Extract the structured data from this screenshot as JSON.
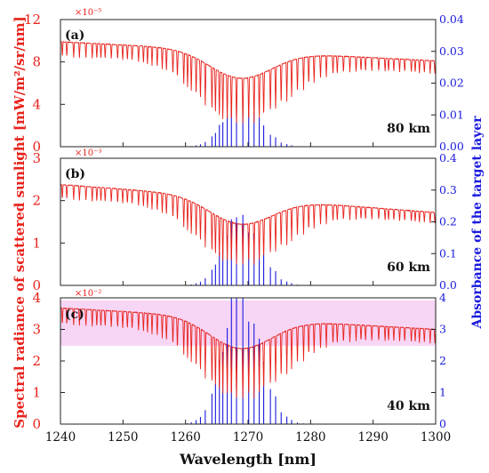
{
  "chart_data": {
    "type": "line",
    "xlabel": "Wavelength [nm]",
    "ylabel_left": "Spectral radiance of scattered sunlight [mW/m²/sr/nm]",
    "ylabel_right": "Absorbance of the target layer",
    "xlim": [
      1240,
      1300
    ],
    "xticks": [
      "1240",
      "1250",
      "1260",
      "1270",
      "1280",
      "1290",
      "1300"
    ],
    "colors": {
      "radiance": "#e8221c",
      "absorbance": "#1a1adf",
      "highlight": "#f4c8f2"
    },
    "panels": [
      {
        "letter": "(a)",
        "altitude": "80 km",
        "left_exponent": "×10⁻⁵",
        "left_ylim": [
          0,
          12
        ],
        "left_ticks": [
          "0",
          "4",
          "8",
          "12"
        ],
        "right_ylim": [
          0,
          0.04
        ],
        "right_ticks": [
          "0.00",
          "0.01",
          "0.02",
          "0.03",
          "0.04"
        ],
        "radiance_start": 9.9,
        "radiance_end": 8.1,
        "absorbance_peak": 0.0135
      },
      {
        "letter": "(b)",
        "altitude": "60 km",
        "left_exponent": "×10⁻³",
        "left_ylim": [
          0,
          3
        ],
        "left_ticks": [
          "0",
          "1",
          "2",
          "3"
        ],
        "right_ylim": [
          0,
          0.4
        ],
        "right_ticks": [
          "0.0",
          "0.1",
          "0.2",
          "0.3",
          "0.4"
        ],
        "radiance_start": 2.38,
        "radiance_end": 1.72,
        "absorbance_peak": 0.205
      },
      {
        "letter": "(c)",
        "altitude": "40 km",
        "left_exponent": "×10⁻²",
        "left_ylim": [
          0,
          4
        ],
        "left_ticks": [
          "0",
          "1",
          "2",
          "3",
          "4"
        ],
        "right_ylim": [
          0,
          4
        ],
        "right_ticks": [
          "0",
          "1",
          "2",
          "3",
          "4"
        ],
        "radiance_start": 3.68,
        "radiance_end": 3.0,
        "absorbance_peak": 4.0,
        "highlighted": true
      }
    ]
  }
}
